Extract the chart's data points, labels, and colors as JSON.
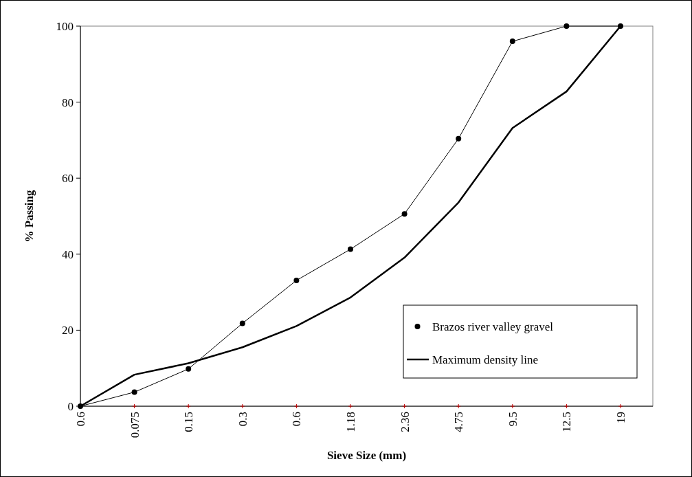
{
  "chart_data": {
    "type": "line",
    "xlabel": "Sieve Size (mm)",
    "ylabel": "% Passing",
    "categories": [
      "0.6",
      "0.075",
      "0.15",
      "0.3",
      "0.6",
      "1.18",
      "2.36",
      "4.75",
      "9.5",
      "12.5",
      "19"
    ],
    "ylim": [
      0,
      100
    ],
    "yticks": [
      0,
      20,
      40,
      60,
      80,
      100
    ],
    "grid": false,
    "legend": "right",
    "series": [
      {
        "name": "Brazos river valley gravel",
        "color": "#000000",
        "marker": "circle",
        "values": [
          0,
          3.7,
          9.8,
          21.8,
          33.1,
          41.3,
          50.6,
          70.4,
          96,
          100,
          100
        ]
      },
      {
        "name": "Maximum density line",
        "color": "#000000",
        "marker": "none",
        "values": [
          0,
          8.3,
          11.3,
          15.5,
          21.1,
          28.6,
          39.1,
          53.6,
          73.2,
          82.8,
          100
        ]
      }
    ]
  }
}
